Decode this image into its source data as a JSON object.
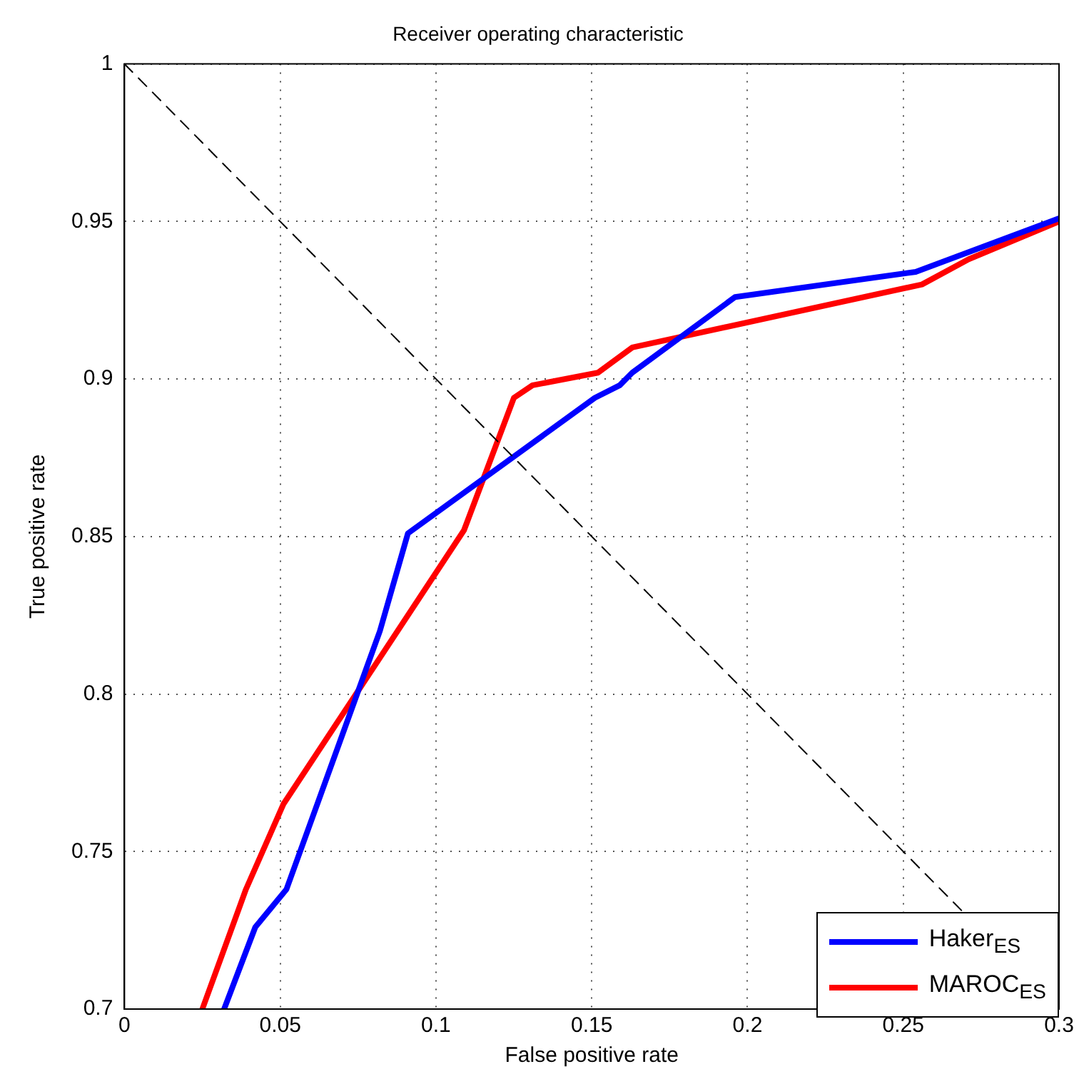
{
  "chart_data": {
    "type": "line",
    "title": "Receiver operating characteristic",
    "xlabel": "False positive rate",
    "ylabel": "True positive rate",
    "xlim": [
      0,
      0.3
    ],
    "xticks": [
      0,
      0.05,
      0.1,
      0.15,
      0.2,
      0.25,
      0.3
    ],
    "ylim": [
      0.7,
      1
    ],
    "yticks": [
      0.7,
      0.75,
      0.8,
      0.85,
      0.9,
      0.95,
      1
    ],
    "grid": true,
    "legend": "bottom right",
    "marker": "none",
    "series": [
      {
        "type": "line",
        "color": "#000000",
        "line_style": "dashed",
        "x": [
          0,
          0.3
        ],
        "values": [
          1,
          0.7
        ]
      },
      {
        "name": "Haker$_{ES}$",
        "color": "#0000ff",
        "x": [
          0.032,
          0.042,
          0.052,
          0.082,
          0.091,
          0.151,
          0.159,
          0.163,
          0.196,
          0.254,
          0.3
        ],
        "values": [
          0.7,
          0.726,
          0.738,
          0.82,
          0.851,
          0.894,
          0.898,
          0.902,
          0.926,
          0.934,
          0.951
        ]
      },
      {
        "name": "MAROC$_{ES}$",
        "color": "#ff0000",
        "x": [
          0.025,
          0.039,
          0.051,
          0.109,
          0.125,
          0.131,
          0.152,
          0.163,
          0.256,
          0.271,
          0.3
        ],
        "values": [
          0.7,
          0.738,
          0.765,
          0.852,
          0.894,
          0.898,
          0.902,
          0.91,
          0.93,
          0.938,
          0.95
        ]
      }
    ]
  }
}
